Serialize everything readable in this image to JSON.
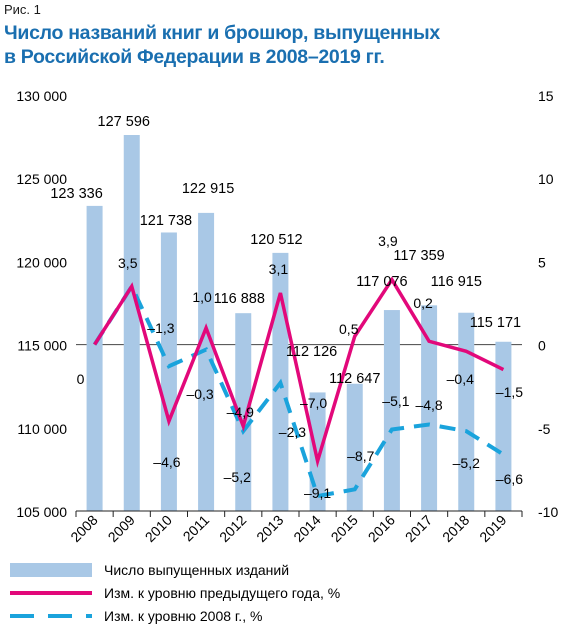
{
  "figure_label": "Рис. 1",
  "title_line1": "Число названий книг и брошюр, выпущенных",
  "title_line2": "в Российской Федерации в 2008–2019 гг.",
  "colors": {
    "title": "#1a6fb0",
    "bars": "#a9c8e6",
    "line_prev": "#e2087a",
    "line_2008": "#1aa3dc"
  },
  "chart_data": {
    "type": "bar",
    "categories": [
      "2008",
      "2009",
      "2010",
      "2011",
      "2012",
      "2013",
      "2014",
      "2015",
      "2016",
      "2017",
      "2018",
      "2019"
    ],
    "left_axis": {
      "min": 105000,
      "max": 130000,
      "ticks": [
        "130 000",
        "125 000",
        "120 000",
        "115 000",
        "110 000",
        "105 000"
      ]
    },
    "right_axis": {
      "min": -10,
      "max": 15,
      "ticks": [
        "15",
        "10",
        "5",
        "0",
        "-5",
        "-10"
      ]
    },
    "series": [
      {
        "name": "Число выпущенных изданий",
        "type": "bar",
        "axis": "left",
        "values": [
          123336,
          127596,
          121738,
          122915,
          116888,
          120512,
          112126,
          112647,
          117076,
          117359,
          116915,
          115171
        ],
        "labels": [
          "123 336",
          "127 596",
          "121 738",
          "122 915",
          "116 888",
          "120 512",
          "112 126",
          "112 647",
          "117 076",
          "117 359",
          "116 915",
          "115 171"
        ]
      },
      {
        "name": "Изм. к уровню предыдущего года, %",
        "type": "line",
        "axis": "right",
        "values": [
          0,
          3.5,
          -4.6,
          1.0,
          -4.9,
          3.1,
          -7.0,
          0.5,
          3.9,
          0.2,
          -0.4,
          -1.5
        ],
        "labels": [
          "0",
          "3,5",
          "–4,6",
          "1,0",
          "–4,9",
          "3,1",
          "–7,0",
          "0,5",
          "3,9",
          "0,2",
          "–0,4",
          "–1,5"
        ]
      },
      {
        "name": "Изм. к уровню 2008 г., %",
        "type": "line-dashed",
        "axis": "right",
        "values": [
          0,
          3.5,
          -1.3,
          -0.3,
          -5.2,
          -2.3,
          -9.1,
          -8.7,
          -5.1,
          -4.8,
          -5.2,
          -6.6
        ],
        "labels": [
          "",
          "",
          "–1,3",
          "–0,3",
          "–5,2",
          "–2,3",
          "–9,1",
          "–8,7",
          "–5,1",
          "–4,8",
          "–5,2",
          "–6,6"
        ]
      }
    ]
  }
}
